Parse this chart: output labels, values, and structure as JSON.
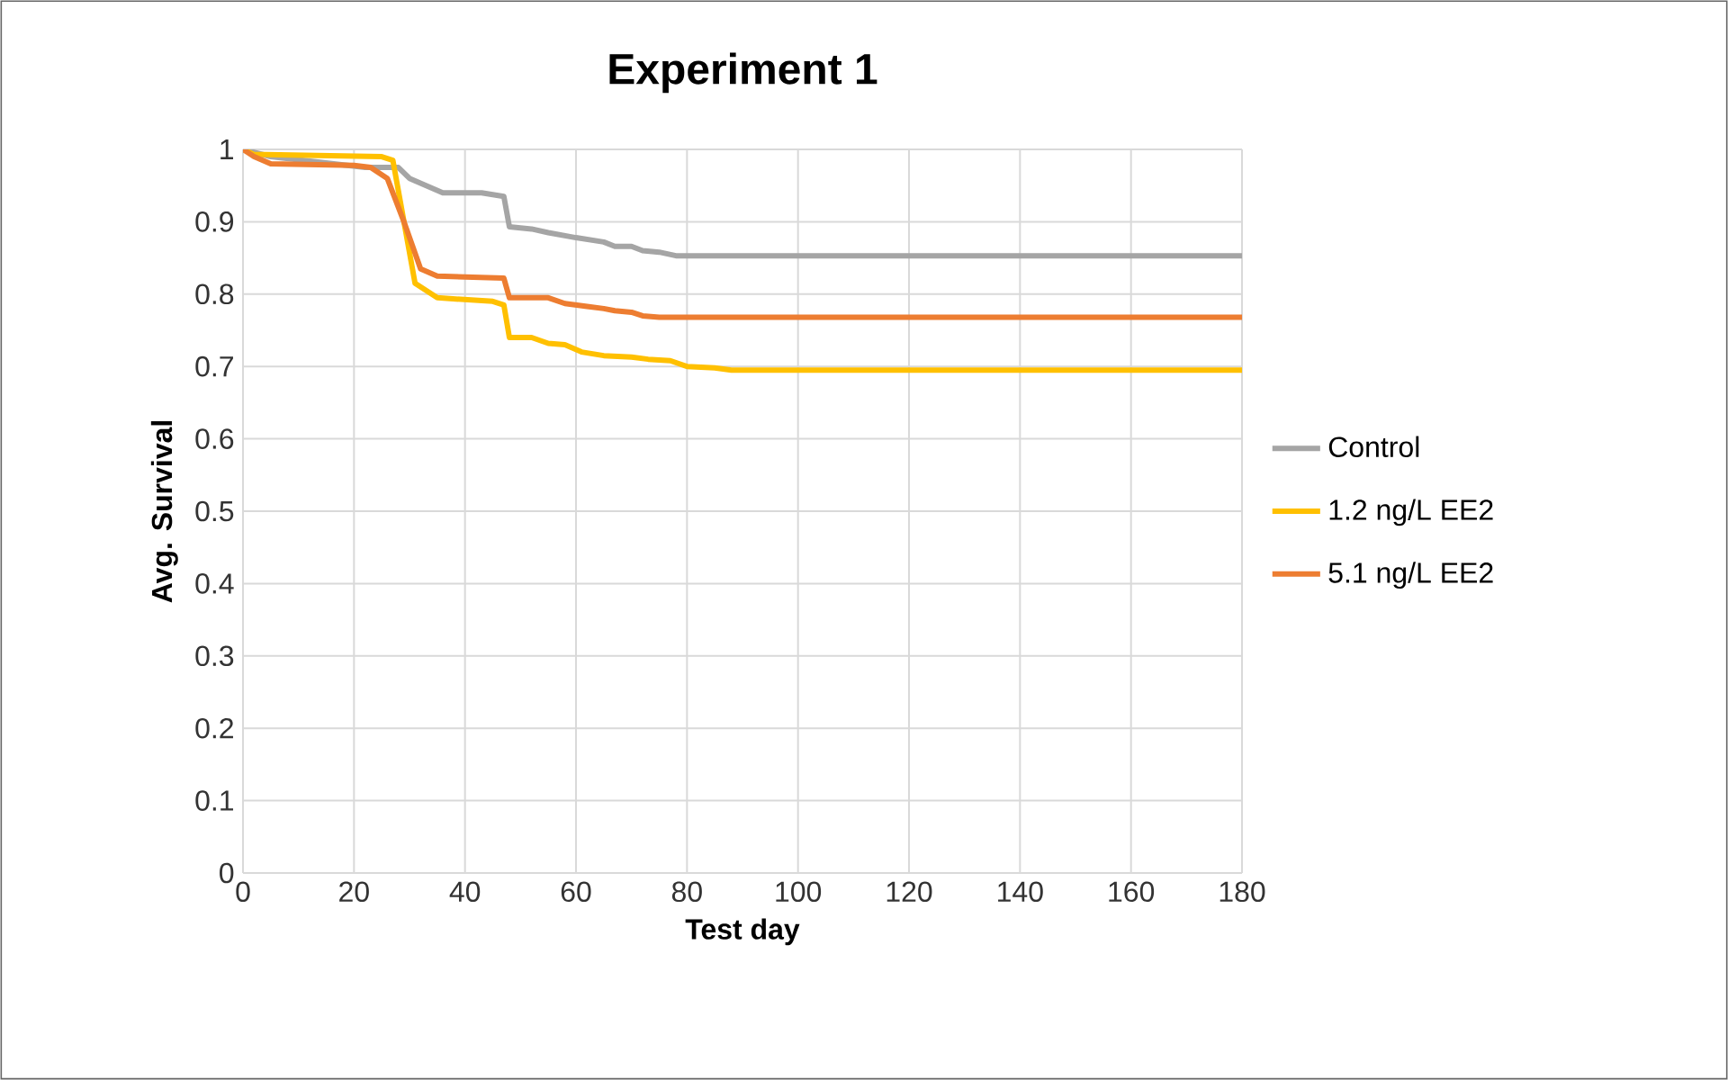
{
  "chart_data": {
    "type": "line",
    "title": "Experiment 1",
    "xlabel": "Test day",
    "ylabel": "Avg. Survival",
    "xlim": [
      0,
      180
    ],
    "xticks": [
      0,
      20,
      40,
      60,
      80,
      100,
      120,
      140,
      160,
      180
    ],
    "ylim": [
      0,
      1
    ],
    "yticks": [
      0,
      0.1,
      0.2,
      0.3,
      0.4,
      0.5,
      0.6,
      0.7,
      0.8,
      0.9,
      1
    ],
    "grid": true,
    "legend": "right",
    "marker": "none",
    "line_style": "solid",
    "series": [
      {
        "name": "Control",
        "color": "#a5a5a5",
        "x": [
          0,
          5,
          22,
          28,
          30,
          33,
          36,
          43,
          47,
          48,
          52,
          55,
          60,
          65,
          67,
          70,
          72,
          75,
          78,
          180
        ],
        "values": [
          1,
          0.99,
          0.975,
          0.975,
          0.96,
          0.95,
          0.94,
          0.94,
          0.935,
          0.893,
          0.89,
          0.885,
          0.878,
          0.872,
          0.866,
          0.866,
          0.86,
          0.858,
          0.853,
          0.853
        ]
      },
      {
        "name": "1.2 ng/L EE2",
        "color": "#ffc000",
        "x": [
          0,
          2,
          25,
          27,
          29,
          31,
          35,
          45,
          47,
          48,
          52,
          55,
          58,
          61,
          65,
          70,
          73,
          77,
          80,
          85,
          88,
          180
        ],
        "values": [
          1,
          0.993,
          0.99,
          0.985,
          0.9,
          0.815,
          0.795,
          0.79,
          0.785,
          0.74,
          0.74,
          0.732,
          0.73,
          0.72,
          0.715,
          0.713,
          0.71,
          0.708,
          0.7,
          0.698,
          0.695,
          0.695
        ]
      },
      {
        "name": "5.1 ng/L EE2",
        "color": "#ed7d31",
        "x": [
          0,
          2,
          5,
          20,
          23,
          26,
          29,
          32,
          35,
          47,
          48,
          55,
          58,
          62,
          65,
          67,
          70,
          72,
          75,
          180
        ],
        "values": [
          1,
          0.99,
          0.98,
          0.978,
          0.975,
          0.96,
          0.9,
          0.835,
          0.825,
          0.822,
          0.795,
          0.795,
          0.787,
          0.783,
          0.78,
          0.777,
          0.775,
          0.77,
          0.768,
          0.768
        ]
      }
    ]
  }
}
